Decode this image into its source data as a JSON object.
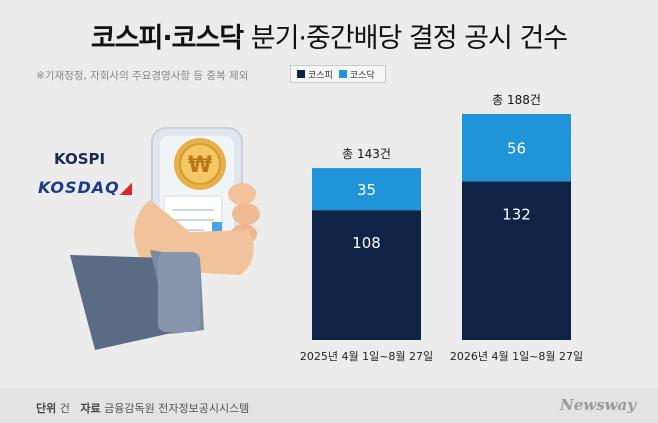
{
  "title": {
    "bold_part": "코스피·코스닥",
    "rest_part": " 분기·중간배당 결정 공시 건수"
  },
  "note": "※기재정정, 자회사의 주요경영사항 등 중복 제외",
  "brand_labels": {
    "kospi": "KOSPI",
    "kosdaq": "KOSDAQ"
  },
  "colors": {
    "kospi": "#0f2346",
    "kosdaq": "#1f94d8",
    "background": "#ececec"
  },
  "chart_data": {
    "type": "bar",
    "stacked": true,
    "categories": [
      "2025년 4월 1일~8월 27일",
      "2026년 4월 1일~8월 27일"
    ],
    "series": [
      {
        "name": "코스피",
        "values": [
          108,
          132
        ],
        "color": "#0f2346"
      },
      {
        "name": "코스닥",
        "values": [
          35,
          56
        ],
        "color": "#1f94d8"
      }
    ],
    "totals": [
      "총 143건",
      "총 188건"
    ],
    "title": "",
    "xlabel": "",
    "ylabel": "",
    "ylim": [
      0,
      200
    ],
    "grid": false,
    "legend_position": "top"
  },
  "footer": {
    "unit_label": "단위",
    "unit_value": "건",
    "source_label": "자료",
    "source_value": "금융감독원 전자정보공시시스템",
    "logo": "Newsway"
  }
}
